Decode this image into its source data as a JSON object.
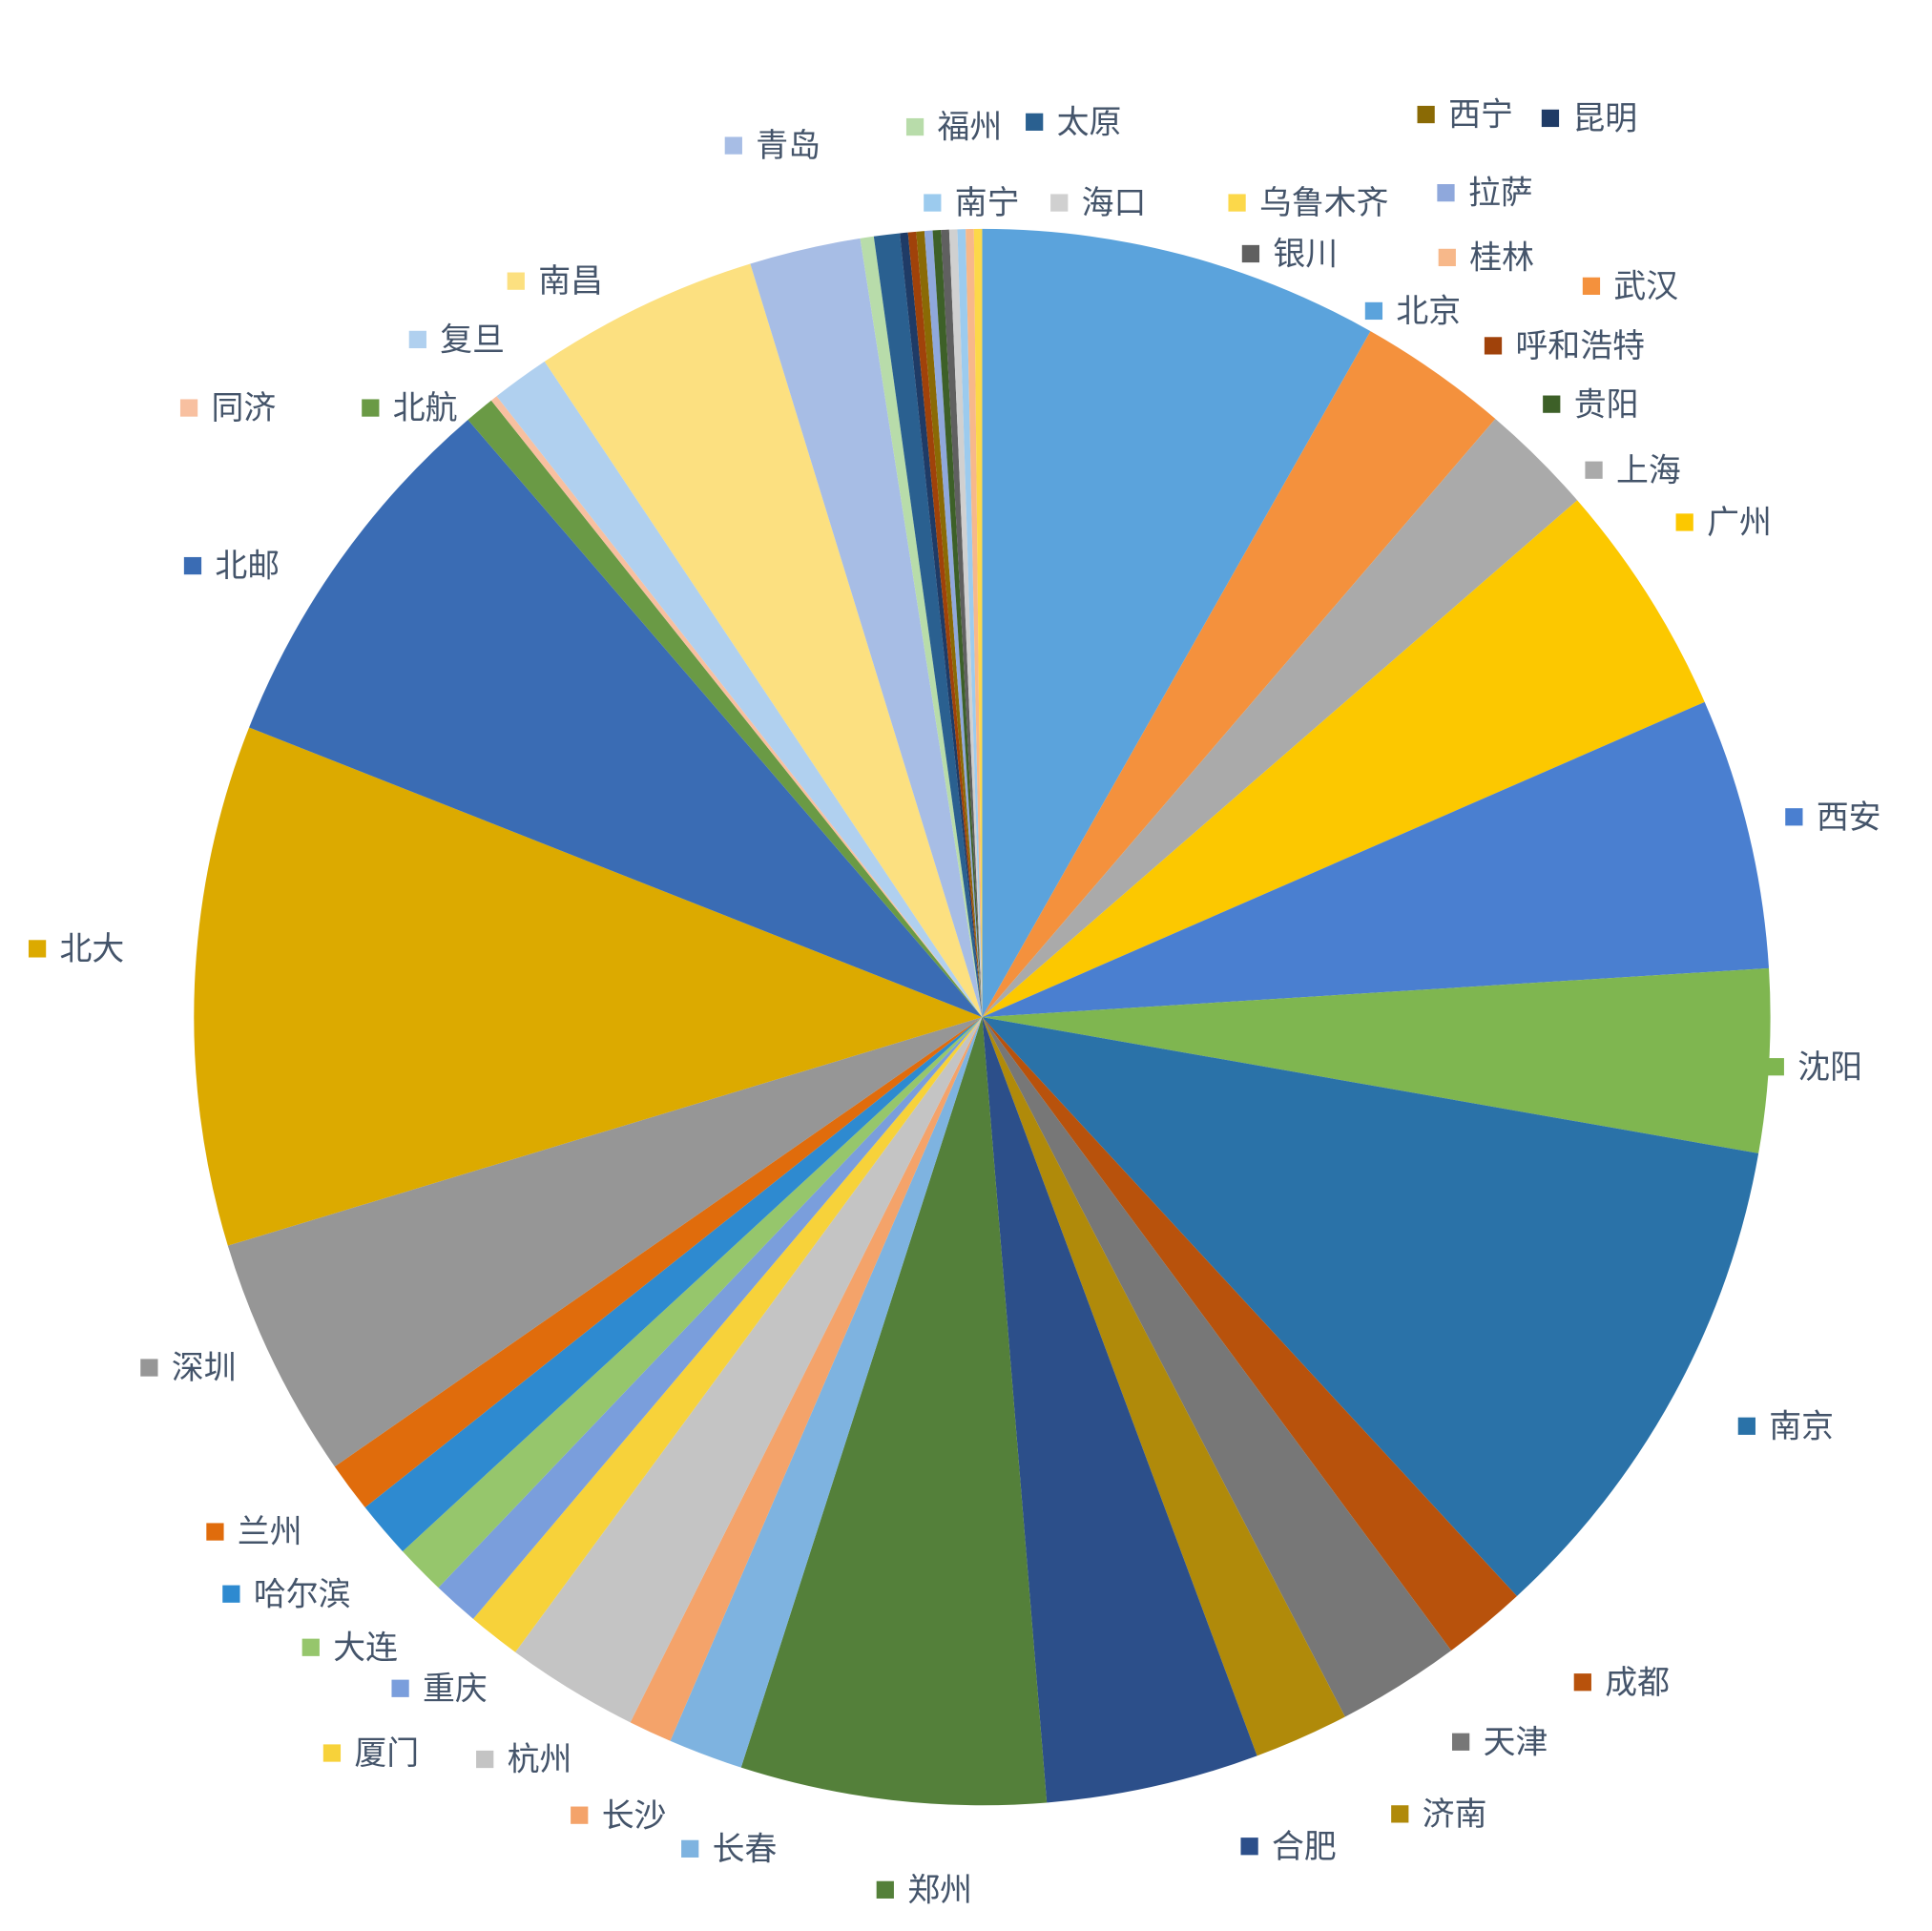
{
  "chart_data": {
    "type": "pie",
    "categories": [
      "北京",
      "武汉",
      "上海",
      "广州",
      "西安",
      "沈阳",
      "南京",
      "成都",
      "天津",
      "济南",
      "合肥",
      "郑州",
      "长春",
      "长沙",
      "杭州",
      "厦门",
      "重庆",
      "大连",
      "哈尔滨",
      "兰州",
      "深圳",
      "北大",
      "北邮",
      "北航",
      "同济",
      "复旦",
      "南昌",
      "青岛",
      "福州",
      "太原",
      "昆明",
      "呼和浩特",
      "西宁",
      "拉萨",
      "贵阳",
      "银川",
      "海口",
      "南宁",
      "桂林",
      "乌鲁木齐"
    ],
    "values": [
      29.5,
      11.1,
      8.4,
      17.4,
      20,
      13.5,
      37.3,
      6.2,
      9.1,
      7,
      15.7,
      22.5,
      5.5,
      3.2,
      9.8,
      3.9,
      3.4,
      3.7,
      4.2,
      3.7,
      17.9,
      38.4,
      27.7,
      2.2,
      0.5,
      4.3,
      16.6,
      8.2,
      1,
      1.9,
      0.6,
      0.6,
      0.6,
      0.6,
      0.6,
      0.6,
      0.6,
      0.6,
      0.6,
      0.6
    ],
    "colors": [
      "#5ba3dc",
      "#f4913d",
      "#aaaaaa",
      "#fcc800",
      "#4a7fd0",
      "#7fb650",
      "#2a72a8",
      "#b8520c",
      "#777777",
      "#b08a0a",
      "#2c4f8a",
      "#54803a",
      "#7eb3e0",
      "#f4a36a",
      "#c4c4c4",
      "#f7d23a",
      "#7a9edc",
      "#96c66c",
      "#2e8ad0",
      "#e06c0c",
      "#969696",
      "#dcaa00",
      "#3a6cb4",
      "#6a9a45",
      "#f8c0a0",
      "#b0d0ef",
      "#fce080",
      "#a7bde5",
      "#b8dcaa",
      "#2a6090",
      "#1f3b66",
      "#a0420a",
      "#8a6a05",
      "#8fa8dc",
      "#3d6028",
      "#606060",
      "#d0d0d0",
      "#9ccbee",
      "#f7b88a",
      "#fcd84a"
    ]
  }
}
